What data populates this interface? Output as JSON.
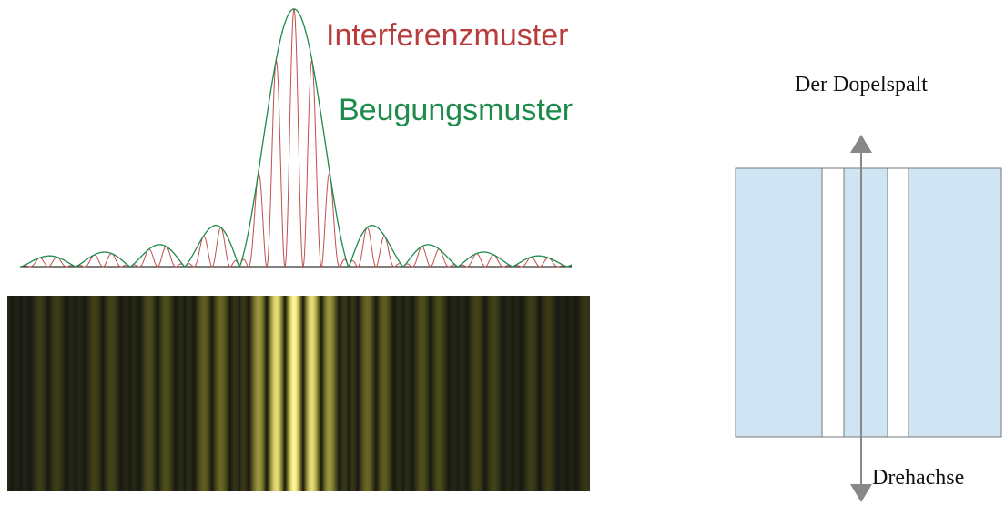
{
  "labels": {
    "interference": "Interferenzmuster",
    "diffraction": "Beugungsmuster"
  },
  "slit": {
    "title": "Der Dopelspalt",
    "axis": "Drehachse"
  }
}
